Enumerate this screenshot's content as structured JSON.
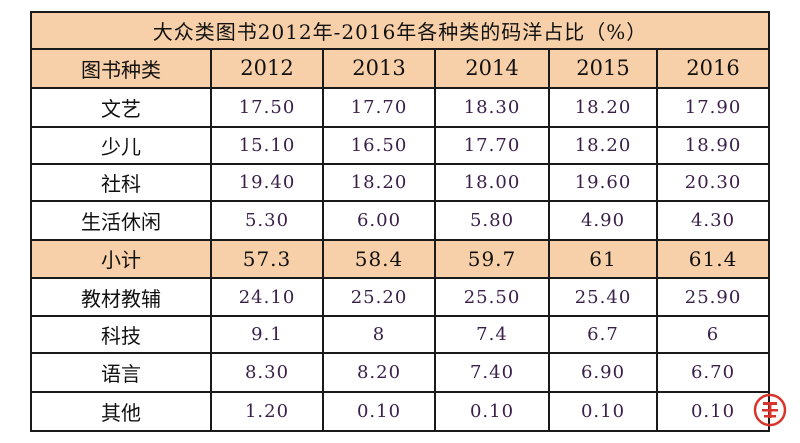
{
  "chart_data": {
    "type": "table",
    "title": "大众类图书2012年-2016年各种类的码洋占比（%）",
    "corner_label": "图书种类",
    "columns": [
      "2012",
      "2013",
      "2014",
      "2015",
      "2016"
    ],
    "rows": [
      {
        "label": "文艺",
        "values": [
          "17.50",
          "17.70",
          "18.30",
          "18.20",
          "17.90"
        ],
        "subtotal": false
      },
      {
        "label": "少儿",
        "values": [
          "15.10",
          "16.50",
          "17.70",
          "18.20",
          "18.90"
        ],
        "subtotal": false
      },
      {
        "label": "社科",
        "values": [
          "19.40",
          "18.20",
          "18.00",
          "19.60",
          "20.30"
        ],
        "subtotal": false
      },
      {
        "label": "生活休闲",
        "values": [
          "5.30",
          "6.00",
          "5.80",
          "4.90",
          "4.30"
        ],
        "subtotal": false
      },
      {
        "label": "小计",
        "values": [
          "57.3",
          "58.4",
          "59.7",
          "61",
          "61.4"
        ],
        "subtotal": true
      },
      {
        "label": "教材教辅",
        "values": [
          "24.10",
          "25.20",
          "25.50",
          "25.40",
          "25.90"
        ],
        "subtotal": false
      },
      {
        "label": "科技",
        "values": [
          "9.1",
          "8",
          "7.4",
          "6.7",
          "6"
        ],
        "subtotal": false
      },
      {
        "label": "语言",
        "values": [
          "8.30",
          "8.20",
          "7.40",
          "6.90",
          "6.70"
        ],
        "subtotal": false
      },
      {
        "label": "其他",
        "values": [
          "1.20",
          "0.10",
          "0.10",
          "0.10",
          "0.10"
        ],
        "subtotal": false
      }
    ]
  },
  "colors": {
    "header_fill": "#f7cfa8",
    "value_text": "#3a1f4a",
    "stamp": "#d9342b"
  },
  "stamp_icon": "red-seal-logo-icon"
}
